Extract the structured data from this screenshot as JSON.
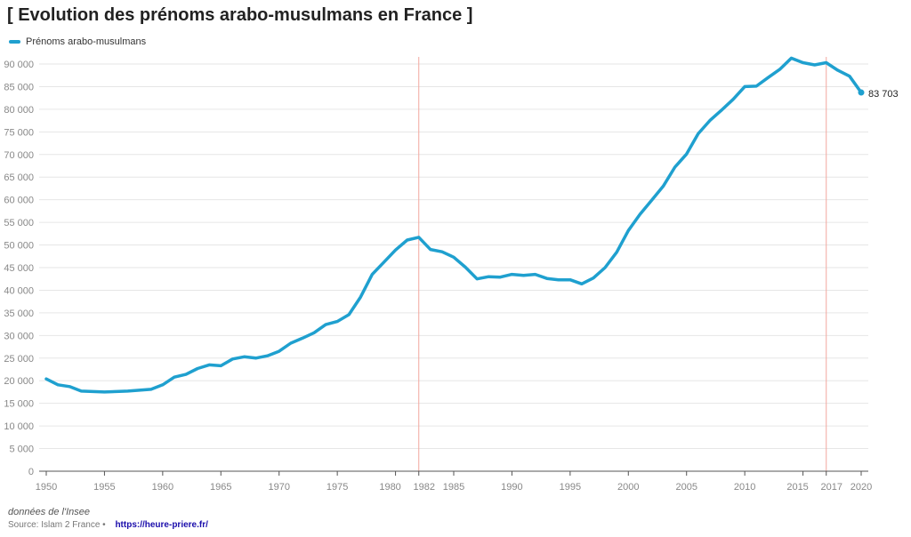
{
  "header": {
    "title": "[ Evolution des prénoms arabo-musulmans en France ]"
  },
  "footer": {
    "note": "données de l'Insee",
    "source": "Source: Islam 2 France •",
    "link": "https://heure-priere.fr/"
  },
  "colors": {
    "line": "#1fa0cf",
    "marker": "#f2a79f",
    "grid": "#e6e6e6"
  },
  "chart_data": {
    "type": "line",
    "series": [
      {
        "name": "Prénoms arabo-musulmans",
        "x": [
          1950,
          1951,
          1952,
          1953,
          1954,
          1955,
          1956,
          1957,
          1958,
          1959,
          1960,
          1961,
          1962,
          1963,
          1964,
          1965,
          1966,
          1967,
          1968,
          1969,
          1970,
          1971,
          1972,
          1973,
          1974,
          1975,
          1976,
          1977,
          1978,
          1979,
          1980,
          1981,
          1982,
          1983,
          1984,
          1985,
          1986,
          1987,
          1988,
          1989,
          1990,
          1991,
          1992,
          1993,
          1994,
          1995,
          1996,
          1997,
          1998,
          1999,
          2000,
          2001,
          2002,
          2003,
          2004,
          2005,
          2006,
          2007,
          2008,
          2009,
          2010,
          2011,
          2012,
          2013,
          2014,
          2015,
          2016,
          2017,
          2018,
          2019,
          2020
        ],
        "y": [
          20400,
          19100,
          18700,
          17700,
          17600,
          17500,
          17600,
          17700,
          17900,
          18100,
          19100,
          20800,
          21400,
          22700,
          23500,
          23300,
          24800,
          25300,
          25000,
          25500,
          26500,
          28300,
          29400,
          30600,
          32400,
          33100,
          34600,
          38500,
          43500,
          46200,
          48900,
          51100,
          51700,
          49000,
          48500,
          47300,
          45100,
          42500,
          43000,
          42900,
          43500,
          43300,
          43500,
          42600,
          42300,
          42300,
          41400,
          42700,
          45000,
          48400,
          53200,
          56800,
          59900,
          63000,
          67200,
          70100,
          74600,
          77500,
          79800,
          82200,
          85000,
          85100,
          87000,
          88800,
          91300,
          90300,
          89800,
          90300,
          88600,
          87300,
          83703
        ]
      }
    ],
    "end_label": "83 703",
    "reference_lines_x": [
      1982,
      2017
    ],
    "xlim": [
      1950,
      2020
    ],
    "ylim": [
      0,
      90000
    ],
    "y_ticks": [
      0,
      5000,
      10000,
      15000,
      20000,
      25000,
      30000,
      35000,
      40000,
      45000,
      50000,
      55000,
      60000,
      65000,
      70000,
      75000,
      80000,
      85000,
      90000
    ],
    "y_tick_labels": [
      "0",
      "5 000",
      "10 000",
      "15 000",
      "20 000",
      "25 000",
      "30 000",
      "35 000",
      "40 000",
      "45 000",
      "50 000",
      "55 000",
      "60 000",
      "65 000",
      "70 000",
      "75 000",
      "80 000",
      "85 000",
      "90 000"
    ],
    "x_ticks": [
      1950,
      1955,
      1960,
      1965,
      1970,
      1975,
      1980,
      1982,
      1985,
      1990,
      1995,
      2000,
      2005,
      2010,
      2015,
      2017,
      2020
    ],
    "x_tick_labels": [
      "1950",
      "1955",
      "1960",
      "1965",
      "1970",
      "1975",
      "1980",
      "1982",
      "1985",
      "1990",
      "1995",
      "2000",
      "2005",
      "2010",
      "2015",
      "2017",
      "2020"
    ],
    "grid": true,
    "legend": "top-left"
  }
}
